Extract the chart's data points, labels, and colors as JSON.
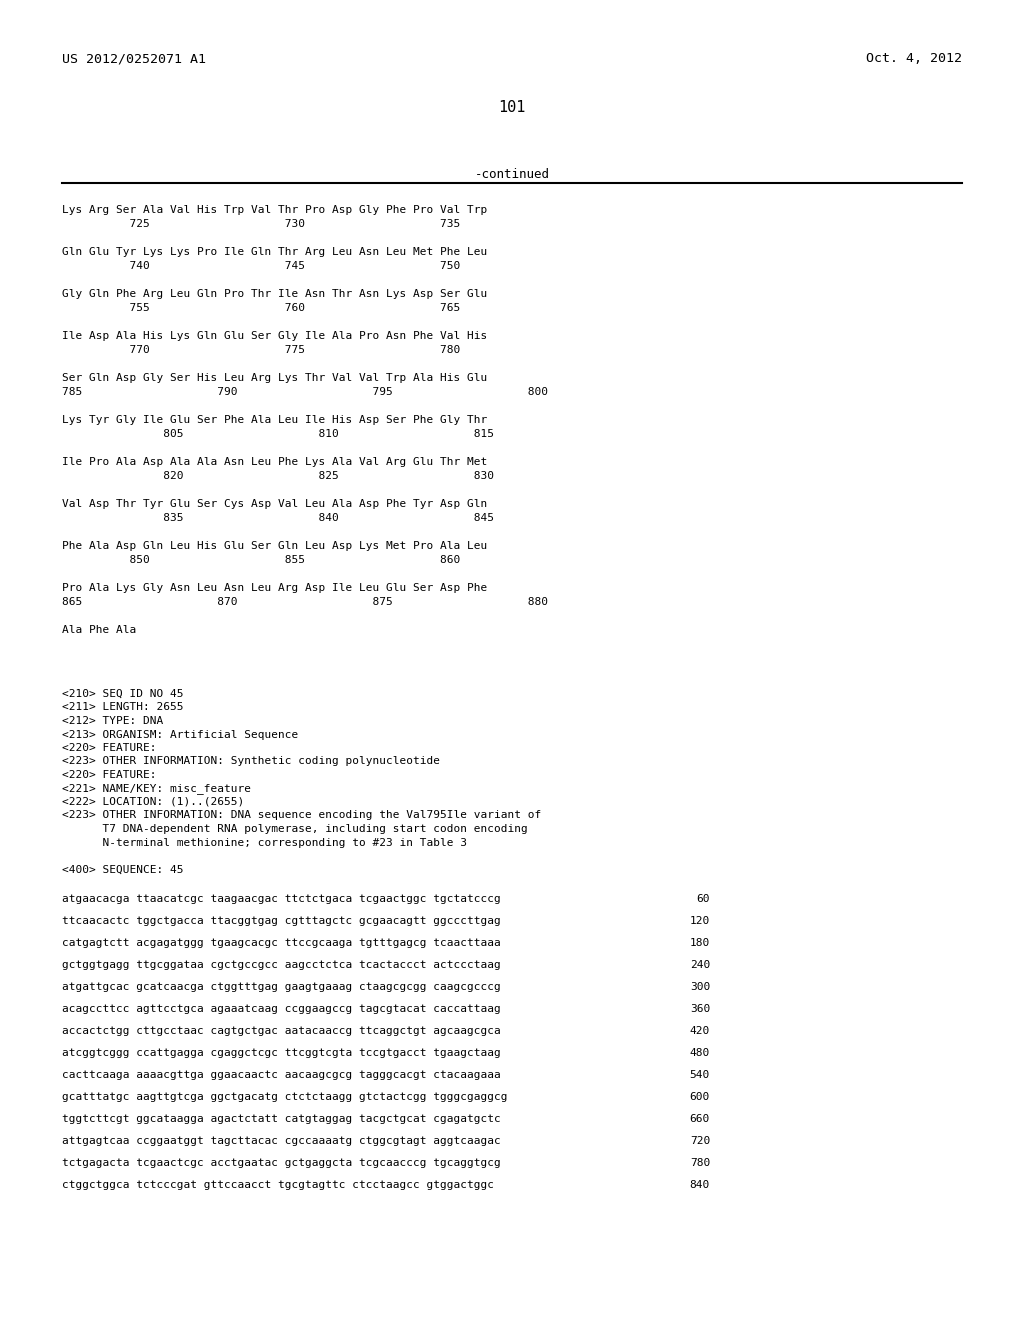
{
  "header_left": "US 2012/0252071 A1",
  "header_right": "Oct. 4, 2012",
  "page_number": "101",
  "continued_label": "-continued",
  "background_color": "#ffffff",
  "text_color": "#000000",
  "amino_acid_lines": [
    {
      "sequence": "Lys Arg Ser Ala Val His Trp Val Thr Pro Asp Gly Phe Pro Val Trp",
      "numbers": "          725                    730                    735"
    },
    {
      "sequence": "Gln Glu Tyr Lys Lys Pro Ile Gln Thr Arg Leu Asn Leu Met Phe Leu",
      "numbers": "          740                    745                    750"
    },
    {
      "sequence": "Gly Gln Phe Arg Leu Gln Pro Thr Ile Asn Thr Asn Lys Asp Ser Glu",
      "numbers": "          755                    760                    765"
    },
    {
      "sequence": "Ile Asp Ala His Lys Gln Glu Ser Gly Ile Ala Pro Asn Phe Val His",
      "numbers": "          770                    775                    780"
    },
    {
      "sequence": "Ser Gln Asp Gly Ser His Leu Arg Lys Thr Val Val Trp Ala His Glu",
      "numbers": "785                    790                    795                    800"
    },
    {
      "sequence": "Lys Tyr Gly Ile Glu Ser Phe Ala Leu Ile His Asp Ser Phe Gly Thr",
      "numbers": "               805                    810                    815"
    },
    {
      "sequence": "Ile Pro Ala Asp Ala Ala Asn Leu Phe Lys Ala Val Arg Glu Thr Met",
      "numbers": "               820                    825                    830"
    },
    {
      "sequence": "Val Asp Thr Tyr Glu Ser Cys Asp Val Leu Ala Asp Phe Tyr Asp Gln",
      "numbers": "               835                    840                    845"
    },
    {
      "sequence": "Phe Ala Asp Gln Leu His Glu Ser Gln Leu Asp Lys Met Pro Ala Leu",
      "numbers": "          850                    855                    860"
    },
    {
      "sequence": "Pro Ala Lys Gly Asn Leu Asn Leu Arg Asp Ile Leu Glu Ser Asp Phe",
      "numbers": "865                    870                    875                    880"
    },
    {
      "sequence": "Ala Phe Ala",
      "numbers": ""
    }
  ],
  "seq_info_lines": [
    "<210> SEQ ID NO 45",
    "<211> LENGTH: 2655",
    "<212> TYPE: DNA",
    "<213> ORGANISM: Artificial Sequence",
    "<220> FEATURE:",
    "<223> OTHER INFORMATION: Synthetic coding polynucleotide",
    "<220> FEATURE:",
    "<221> NAME/KEY: misc_feature",
    "<222> LOCATION: (1)..(2655)",
    "<223> OTHER INFORMATION: DNA sequence encoding the Val795Ile variant of",
    "      T7 DNA-dependent RNA polymerase, including start codon encoding",
    "      N-terminal methionine; corresponding to #23 in Table 3",
    "",
    "<400> SEQUENCE: 45"
  ],
  "dna_lines": [
    {
      "seq": "atgaacacga ttaacatcgc taagaacgac ttctctgaca tcgaactggc tgctatcccg",
      "num": "60"
    },
    {
      "seq": "ttcaacactc tggctgacca ttacggtgag cgtttagctc gcgaacagtt ggcccttgag",
      "num": "120"
    },
    {
      "seq": "catgagtctt acgagatggg tgaagcacgc ttccgcaaga tgtttgagcg tcaacttaaa",
      "num": "180"
    },
    {
      "seq": "gctggtgagg ttgcggataa cgctgccgcc aagcctctca tcactaccct actccctaag",
      "num": "240"
    },
    {
      "seq": "atgattgcac gcatcaacga ctggtttgag gaagtgaaag ctaagcgcgg caagcgcccg",
      "num": "300"
    },
    {
      "seq": "acagccttcc agttcctgca agaaatcaag ccggaagccg tagcgtacat caccattaag",
      "num": "360"
    },
    {
      "seq": "accactctgg cttgcctaac cagtgctgac aatacaaccg ttcaggctgt agcaagcgca",
      "num": "420"
    },
    {
      "seq": "atcggtcggg ccattgagga cgaggctcgc ttcggtcgta tccgtgacct tgaagctaag",
      "num": "480"
    },
    {
      "seq": "cacttcaaga aaaacgttga ggaacaactc aacaagcgcg tagggcacgt ctacaagaaa",
      "num": "540"
    },
    {
      "seq": "gcatttatgc aagttgtcga ggctgacatg ctctctaagg gtctactcgg tgggcgaggcg",
      "num": "600"
    },
    {
      "seq": "tggtcttcgt ggcataagga agactctatt catgtaggag tacgctgcat cgagatgctc",
      "num": "660"
    },
    {
      "seq": "attgagtcaa ccggaatggt tagcttacac cgccaaaatg ctggcgtagt aggtcaagac",
      "num": "720"
    },
    {
      "seq": "tctgagacta tcgaactcgc acctgaatac gctgaggcta tcgcaacccg tgcaggtgcg",
      "num": "780"
    },
    {
      "seq": "ctggctggca tctcccgat gttccaacct tgcgtagttc ctcctaagcc gtggactggc",
      "num": "840"
    }
  ]
}
